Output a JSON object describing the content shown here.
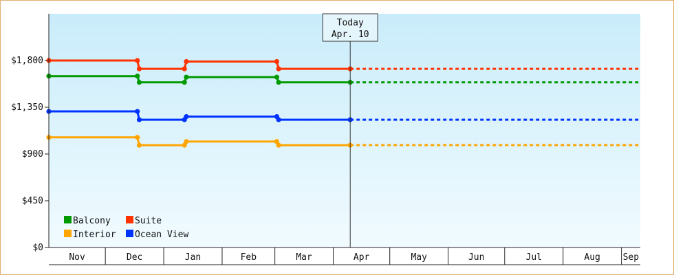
{
  "chart_data": {
    "type": "line",
    "step": true,
    "title": "",
    "xlabel": "",
    "ylabel": "",
    "ylim": [
      0,
      2250
    ],
    "y_ticks": [
      {
        "value": 0,
        "label": "$0"
      },
      {
        "value": 450,
        "label": "$450"
      },
      {
        "value": 900,
        "label": "$900"
      },
      {
        "value": 1350,
        "label": "$1,350"
      },
      {
        "value": 1800,
        "label": "$1,800"
      }
    ],
    "months": [
      "Nov",
      "Dec",
      "Jan",
      "Feb",
      "Mar",
      "Apr",
      "May",
      "Jun",
      "Jul",
      "Aug",
      "Sep"
    ],
    "month_start_days": [
      0,
      30,
      61,
      92,
      120,
      151,
      181,
      212,
      242,
      273,
      304
    ],
    "x_range_days": [
      0,
      314
    ],
    "today": {
      "day": 160,
      "title": "Today",
      "label": "Apr. 10"
    },
    "background": {
      "top": "#c9ecfa",
      "bottom": "#f1fbff"
    },
    "legend_position": "bottom-left",
    "series": [
      {
        "name": "Suite",
        "color": "#ff3300",
        "points": [
          [
            0,
            1800
          ],
          [
            47,
            1800
          ],
          [
            48,
            1720
          ],
          [
            72,
            1720
          ],
          [
            73,
            1790
          ],
          [
            121,
            1790
          ],
          [
            122,
            1720
          ],
          [
            160,
            1720
          ]
        ],
        "projected": 1720
      },
      {
        "name": "Balcony",
        "color": "#009900",
        "points": [
          [
            0,
            1650
          ],
          [
            47,
            1650
          ],
          [
            48,
            1590
          ],
          [
            72,
            1590
          ],
          [
            73,
            1640
          ],
          [
            121,
            1640
          ],
          [
            122,
            1590
          ],
          [
            160,
            1590
          ]
        ],
        "projected": 1590
      },
      {
        "name": "Ocean View",
        "color": "#0033ff",
        "points": [
          [
            0,
            1310
          ],
          [
            47,
            1310
          ],
          [
            48,
            1230
          ],
          [
            72,
            1230
          ],
          [
            73,
            1260
          ],
          [
            121,
            1260
          ],
          [
            122,
            1230
          ],
          [
            160,
            1230
          ]
        ],
        "projected": 1230
      },
      {
        "name": "Interior",
        "color": "#ffa500",
        "points": [
          [
            0,
            1060
          ],
          [
            47,
            1060
          ],
          [
            48,
            985
          ],
          [
            72,
            985
          ],
          [
            73,
            1020
          ],
          [
            121,
            1020
          ],
          [
            122,
            985
          ],
          [
            160,
            985
          ]
        ],
        "projected": 985
      }
    ],
    "legend_order": [
      "Balcony",
      "Suite",
      "Interior",
      "Ocean View"
    ]
  }
}
